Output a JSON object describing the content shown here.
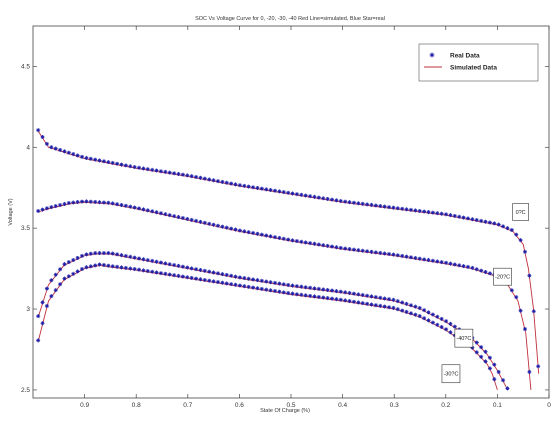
{
  "chart_data": {
    "type": "line",
    "title": "SOC Vs Voltage Curve for 0, -20, -30, -40 Red Line=simulated, Blue Star=real",
    "xlabel": "State Of Charge (%)",
    "ylabel": "Voltage (V)",
    "xlim": [
      1.0,
      0.0
    ],
    "ylim": [
      2.45,
      4.75
    ],
    "x_reversed": true,
    "xticks": [
      0.9,
      0.8,
      0.7,
      0.6,
      0.5,
      0.4,
      0.3,
      0.2,
      0.1,
      0
    ],
    "xtick_labels": [
      "0.9",
      "0.8",
      "0.7",
      "0.6",
      "0.5",
      "0.4",
      "0.3",
      "0.2",
      "0.1",
      "0"
    ],
    "yticks": [
      2.5,
      3,
      3.5,
      4,
      4.5
    ],
    "ytick_labels": [
      "2.5",
      "3",
      "3.5",
      "4",
      "4.5"
    ],
    "grid": false,
    "legend_position": "top-right",
    "legend": [
      {
        "label": "Real Data",
        "marker": "star",
        "color": "#1c1ca8"
      },
      {
        "label": "Simulated Data",
        "marker": "line",
        "color": "#c0303c"
      }
    ],
    "series": [
      {
        "annotation": "0?C",
        "points": [
          [
            0.99,
            4.1
          ],
          [
            0.97,
            4.0
          ],
          [
            0.93,
            3.96
          ],
          [
            0.9,
            3.93
          ],
          [
            0.85,
            3.9
          ],
          [
            0.8,
            3.87
          ],
          [
            0.7,
            3.82
          ],
          [
            0.6,
            3.76
          ],
          [
            0.5,
            3.71
          ],
          [
            0.4,
            3.66
          ],
          [
            0.3,
            3.62
          ],
          [
            0.2,
            3.58
          ],
          [
            0.15,
            3.55
          ],
          [
            0.1,
            3.52
          ],
          [
            0.07,
            3.48
          ],
          [
            0.05,
            3.4
          ],
          [
            0.04,
            3.25
          ],
          [
            0.03,
            3.0
          ],
          [
            0.02,
            2.6
          ]
        ]
      },
      {
        "annotation": "-20?C",
        "points": [
          [
            0.99,
            3.6
          ],
          [
            0.97,
            3.62
          ],
          [
            0.93,
            3.65
          ],
          [
            0.9,
            3.66
          ],
          [
            0.85,
            3.65
          ],
          [
            0.8,
            3.62
          ],
          [
            0.7,
            3.55
          ],
          [
            0.6,
            3.48
          ],
          [
            0.5,
            3.42
          ],
          [
            0.4,
            3.37
          ],
          [
            0.3,
            3.33
          ],
          [
            0.2,
            3.28
          ],
          [
            0.15,
            3.25
          ],
          [
            0.1,
            3.2
          ],
          [
            0.08,
            3.15
          ],
          [
            0.06,
            3.05
          ],
          [
            0.045,
            2.85
          ],
          [
            0.035,
            2.5
          ]
        ]
      },
      {
        "annotation": "-40?C",
        "points": [
          [
            0.99,
            2.95
          ],
          [
            0.97,
            3.15
          ],
          [
            0.94,
            3.27
          ],
          [
            0.9,
            3.33
          ],
          [
            0.88,
            3.34
          ],
          [
            0.85,
            3.34
          ],
          [
            0.8,
            3.31
          ],
          [
            0.7,
            3.25
          ],
          [
            0.6,
            3.19
          ],
          [
            0.5,
            3.14
          ],
          [
            0.4,
            3.1
          ],
          [
            0.3,
            3.05
          ],
          [
            0.25,
            3.0
          ],
          [
            0.2,
            2.92
          ],
          [
            0.15,
            2.82
          ],
          [
            0.12,
            2.72
          ],
          [
            0.1,
            2.62
          ],
          [
            0.08,
            2.5
          ]
        ]
      },
      {
        "annotation": "-30?C",
        "points": [
          [
            0.99,
            2.8
          ],
          [
            0.97,
            3.05
          ],
          [
            0.94,
            3.18
          ],
          [
            0.9,
            3.25
          ],
          [
            0.87,
            3.27
          ],
          [
            0.85,
            3.26
          ],
          [
            0.8,
            3.24
          ],
          [
            0.7,
            3.19
          ],
          [
            0.6,
            3.14
          ],
          [
            0.5,
            3.09
          ],
          [
            0.4,
            3.05
          ],
          [
            0.3,
            3.0
          ],
          [
            0.25,
            2.95
          ],
          [
            0.2,
            2.87
          ],
          [
            0.15,
            2.76
          ],
          [
            0.12,
            2.66
          ],
          [
            0.11,
            2.6
          ],
          [
            0.1,
            2.5
          ]
        ]
      }
    ]
  }
}
